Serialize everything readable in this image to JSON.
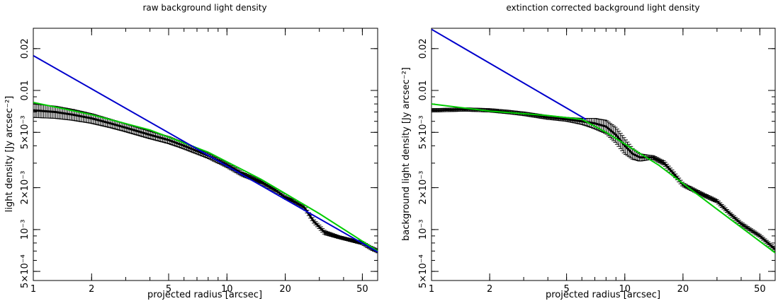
{
  "chart_data": [
    {
      "type": "line",
      "title": "raw background light density",
      "xlabel": "projected radius [arcsec]",
      "ylabel": "light density [Jy arcsec⁻²]",
      "xscale": "log",
      "yscale": "log",
      "xlim": [
        1,
        60
      ],
      "ylim": [
        0.00043,
        0.028
      ],
      "x_ticks": [
        1,
        2,
        5,
        10,
        20,
        50
      ],
      "x_tick_labels": [
        "1",
        "2",
        "5",
        "10",
        "20",
        "50"
      ],
      "y_ticks": [
        0.0005,
        0.001,
        0.002,
        0.005,
        0.01,
        0.02
      ],
      "y_tick_labels": [
        "5×10⁻⁴",
        "10⁻³",
        "2×10⁻³",
        "5×10⁻³",
        "0.01",
        "0.02"
      ],
      "series": [
        {
          "name": "data",
          "color": "#000000",
          "x": [
            1.0,
            1.3,
            1.6,
            2.0,
            2.5,
            3.0,
            4.0,
            5.0,
            6.0,
            8.0,
            10.0,
            12.0,
            15.0,
            18.0,
            20.0,
            22.0,
            25.0,
            28.0,
            32.0,
            38.0,
            45.0,
            50.0,
            55.0,
            60.0
          ],
          "y": [
            0.0072,
            0.007,
            0.0067,
            0.0063,
            0.0058,
            0.0054,
            0.0048,
            0.0044,
            0.004,
            0.0034,
            0.0029,
            0.0025,
            0.0022,
            0.0019,
            0.0017,
            0.0016,
            0.00145,
            0.00115,
            0.00095,
            0.00088,
            0.00083,
            0.0008,
            0.00074,
            0.0007
          ],
          "err": [
            0.0008,
            0.0007,
            0.0006,
            0.0005,
            0.0004,
            0.00035,
            0.0003,
            0.00025,
            0.0002,
            0.00015,
            0.0001,
            8e-05,
            6e-05,
            5e-05,
            4e-05,
            4e-05,
            3e-05,
            3e-05,
            3e-05,
            2e-05,
            2e-05,
            2e-05,
            2e-05,
            2e-05
          ]
        },
        {
          "name": "green fit",
          "color": "#00cc00",
          "x": [
            1.0,
            2.0,
            4.0,
            8.0,
            15.0,
            30.0,
            60.0
          ],
          "y": [
            0.0082,
            0.0067,
            0.0052,
            0.0036,
            0.0023,
            0.0013,
            0.0007
          ]
        },
        {
          "name": "blue fit",
          "color": "#0000cc",
          "x": [
            1.0,
            60.0
          ],
          "y": [
            0.0178,
            0.00069
          ]
        }
      ]
    },
    {
      "type": "line",
      "title": "extinction corrected background light density",
      "xlabel": "projected radius [arcsec]",
      "ylabel": "background light density [Jy arcsec⁻²]",
      "xscale": "log",
      "yscale": "log",
      "xlim": [
        1,
        60
      ],
      "ylim": [
        0.00043,
        0.028
      ],
      "x_ticks": [
        1,
        2,
        5,
        10,
        20,
        50
      ],
      "x_tick_labels": [
        "1",
        "2",
        "5",
        "10",
        "20",
        "50"
      ],
      "y_ticks": [
        0.0005,
        0.001,
        0.002,
        0.005,
        0.01,
        0.02
      ],
      "y_tick_labels": [
        "5×10⁻⁴",
        "10⁻³",
        "2×10⁻³",
        "5×10⁻³",
        "0.01",
        "0.02"
      ],
      "series": [
        {
          "name": "data",
          "color": "#000000",
          "x": [
            1.0,
            1.5,
            2.0,
            2.5,
            3.0,
            4.0,
            5.0,
            6.0,
            6.5,
            7.0,
            8.0,
            9.0,
            10.0,
            11.0,
            12.0,
            14.0,
            16.0,
            18.0,
            20.0,
            25.0,
            30.0,
            35.0,
            40.0,
            50.0,
            60.0
          ],
          "y": [
            0.0072,
            0.0073,
            0.0072,
            0.007,
            0.0068,
            0.0064,
            0.0062,
            0.006,
            0.0059,
            0.0058,
            0.0055,
            0.0048,
            0.004,
            0.0035,
            0.0033,
            0.0033,
            0.003,
            0.0025,
            0.0021,
            0.0018,
            0.0016,
            0.0013,
            0.0011,
            0.0009,
            0.00072
          ],
          "err": [
            0.0002,
            0.0002,
            0.0002,
            0.0002,
            0.0002,
            0.0002,
            0.0002,
            0.0003,
            0.0004,
            0.0005,
            0.0006,
            0.0006,
            0.0005,
            0.0003,
            0.0002,
            0.0001,
            0.0001,
            8e-05,
            6e-05,
            5e-05,
            4e-05,
            3e-05,
            3e-05,
            2e-05,
            2e-05
          ]
        },
        {
          "name": "green fit",
          "color": "#00cc00",
          "x": [
            1.0,
            2.0,
            4.0,
            6.0,
            8.0,
            15.0,
            30.0,
            60.0
          ],
          "y": [
            0.008,
            0.0071,
            0.0066,
            0.0062,
            0.005,
            0.0029,
            0.0014,
            0.00068
          ]
        },
        {
          "name": "blue fit",
          "color": "#0000cc",
          "x": [
            1.0,
            6.3
          ],
          "y": [
            0.0275,
            0.0062
          ]
        }
      ]
    }
  ]
}
